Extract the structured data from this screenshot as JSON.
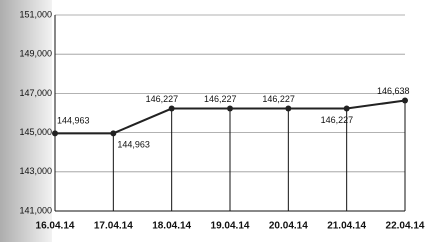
{
  "chart_data": {
    "type": "line",
    "categories": [
      "16.04.14",
      "17.04.14",
      "18.04.14",
      "19.04.14",
      "20.04.14",
      "21.04.14",
      "22.04.14"
    ],
    "values": [
      144963,
      144963,
      146227,
      146227,
      146227,
      146227,
      146638
    ],
    "value_labels": [
      "144,963",
      "144,963",
      "146,227",
      "146,227",
      "146,227",
      "146,227",
      "146,638"
    ],
    "color": "#222222",
    "ylim": [
      141000,
      151000
    ],
    "yticks": [
      {
        "value": 141000,
        "label": "141,000"
      },
      {
        "value": 143000,
        "label": "143,000"
      },
      {
        "value": 145000,
        "label": "145,000"
      },
      {
        "value": 147000,
        "label": "147,000"
      },
      {
        "value": 149000,
        "label": "149,000"
      },
      {
        "value": 151000,
        "label": "151,000"
      }
    ],
    "grid": true
  }
}
